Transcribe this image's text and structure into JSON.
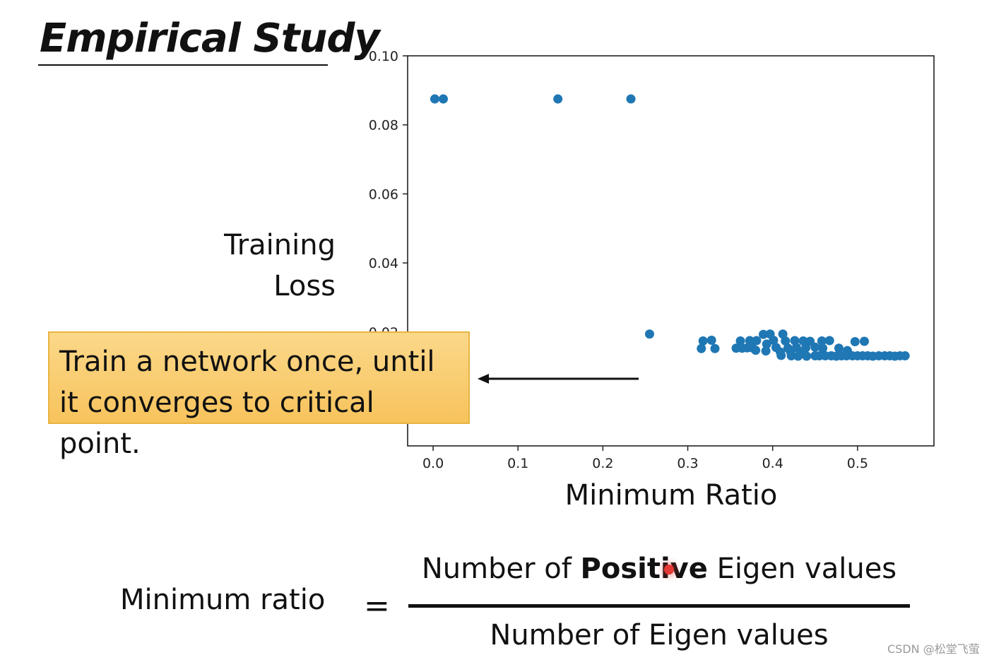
{
  "slide": {
    "title": "Empirical Study",
    "callout": "Train a network once, until it converges to critical point.",
    "watermark": "CSDN @松堂飞萤"
  },
  "formula": {
    "lhs": "Minimum ratio",
    "equals": "=",
    "numerator_pre": "Number of ",
    "numerator_bold": "Positive",
    "numerator_post": " Eigen values",
    "denominator": "Number of Eigen values"
  },
  "colors": {
    "marker": "#1f77b4",
    "callout_fill": "#f9cd6f",
    "cursor": "#e53935"
  },
  "chart_data": {
    "type": "scatter",
    "title": "",
    "xlabel": "Minimum Ratio",
    "ylabel": "Training Loss",
    "xlim": [
      -0.03,
      0.59
    ],
    "ylim": [
      -0.013,
      0.1
    ],
    "x_ticks": [
      0.0,
      0.1,
      0.2,
      0.3,
      0.4,
      0.5
    ],
    "x_tick_labels": [
      "0.0",
      "0.1",
      "0.2",
      "0.3",
      "0.4",
      "0.5"
    ],
    "y_ticks": [
      0.1,
      0.08,
      0.06,
      0.04,
      0.02
    ],
    "y_tick_labels": [
      "0.10",
      "0.08",
      "0.06",
      "0.04",
      "0.02"
    ],
    "grid": false,
    "series": [
      {
        "points": [
          [
            0.002,
            0.0875
          ],
          [
            0.012,
            0.0875
          ],
          [
            0.147,
            0.0875
          ],
          [
            0.233,
            0.0875
          ],
          [
            0.255,
            0.0194
          ],
          [
            0.318,
            0.0174
          ],
          [
            0.328,
            0.0176
          ],
          [
            0.316,
            0.0152
          ],
          [
            0.332,
            0.0152
          ],
          [
            0.357,
            0.0153
          ],
          [
            0.364,
            0.0153
          ],
          [
            0.37,
            0.0154
          ],
          [
            0.376,
            0.0154
          ],
          [
            0.362,
            0.0174
          ],
          [
            0.373,
            0.0175
          ],
          [
            0.381,
            0.0175
          ],
          [
            0.389,
            0.0193
          ],
          [
            0.397,
            0.0194
          ],
          [
            0.412,
            0.0194
          ],
          [
            0.401,
            0.0176
          ],
          [
            0.415,
            0.0174
          ],
          [
            0.426,
            0.0175
          ],
          [
            0.436,
            0.0174
          ],
          [
            0.444,
            0.0173
          ],
          [
            0.458,
            0.0174
          ],
          [
            0.467,
            0.0175
          ],
          [
            0.393,
            0.0165
          ],
          [
            0.404,
            0.0155
          ],
          [
            0.418,
            0.0153
          ],
          [
            0.428,
            0.0155
          ],
          [
            0.439,
            0.0154
          ],
          [
            0.45,
            0.0156
          ],
          [
            0.459,
            0.0153
          ],
          [
            0.38,
            0.0147
          ],
          [
            0.392,
            0.0145
          ],
          [
            0.409,
            0.0142
          ],
          [
            0.421,
            0.0143
          ],
          [
            0.433,
            0.0141
          ],
          [
            0.41,
            0.0132
          ],
          [
            0.422,
            0.0131
          ],
          [
            0.43,
            0.013
          ],
          [
            0.44,
            0.013
          ],
          [
            0.45,
            0.0131
          ],
          [
            0.455,
            0.0131
          ],
          [
            0.462,
            0.0131
          ],
          [
            0.469,
            0.0131
          ],
          [
            0.475,
            0.013
          ],
          [
            0.478,
            0.0153
          ],
          [
            0.488,
            0.0146
          ],
          [
            0.481,
            0.0131
          ],
          [
            0.487,
            0.0131
          ],
          [
            0.494,
            0.0131
          ],
          [
            0.5,
            0.0131
          ],
          [
            0.506,
            0.0131
          ],
          [
            0.497,
            0.0172
          ],
          [
            0.508,
            0.0173
          ],
          [
            0.512,
            0.0131
          ],
          [
            0.518,
            0.013
          ],
          [
            0.525,
            0.0131
          ],
          [
            0.532,
            0.0131
          ],
          [
            0.538,
            0.0131
          ],
          [
            0.544,
            0.013
          ],
          [
            0.55,
            0.0131
          ],
          [
            0.556,
            0.0131
          ]
        ]
      }
    ]
  }
}
